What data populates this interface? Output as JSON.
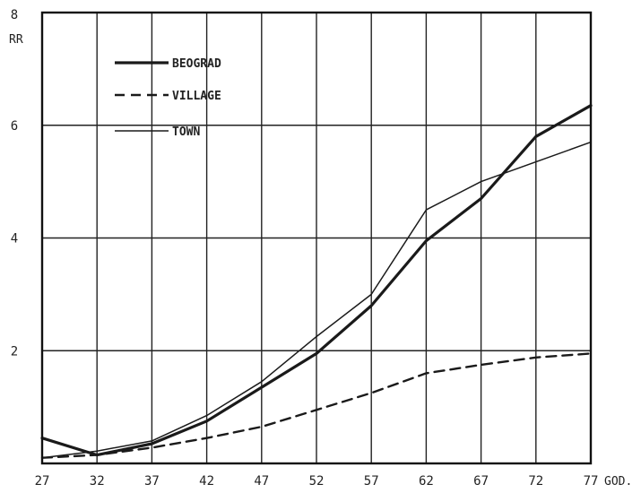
{
  "chart_data": {
    "type": "line",
    "x": [
      27,
      32,
      37,
      42,
      47,
      52,
      57,
      62,
      67,
      72,
      77
    ],
    "x_tick_labels": [
      "27",
      "32",
      "37",
      "42",
      "47",
      "52",
      "57",
      "62",
      "67",
      "72",
      "77"
    ],
    "x_unit_label": "GOD.",
    "y_unit_label": "RR",
    "y_tick_labels": [
      "2",
      "4",
      "6",
      "8"
    ],
    "y_ticks": [
      2,
      4,
      6,
      8
    ],
    "xlim": [
      27,
      77
    ],
    "ylim": [
      0,
      8
    ],
    "grid": true,
    "legend_position": "top-left",
    "series": [
      {
        "name": "BEOGRAD",
        "style": "solid-thick",
        "values": [
          0.45,
          0.15,
          0.35,
          0.75,
          1.35,
          1.95,
          2.8,
          3.95,
          4.7,
          5.8,
          6.35
        ]
      },
      {
        "name": "VILLAGE",
        "style": "dashed",
        "values": [
          0.1,
          0.15,
          0.28,
          0.45,
          0.65,
          0.95,
          1.25,
          1.6,
          1.75,
          1.88,
          1.95
        ]
      },
      {
        "name": "TOWN",
        "style": "solid-thin",
        "values": [
          0.1,
          0.22,
          0.4,
          0.85,
          1.45,
          2.25,
          3.0,
          4.5,
          5.0,
          5.35,
          5.7
        ]
      }
    ]
  }
}
